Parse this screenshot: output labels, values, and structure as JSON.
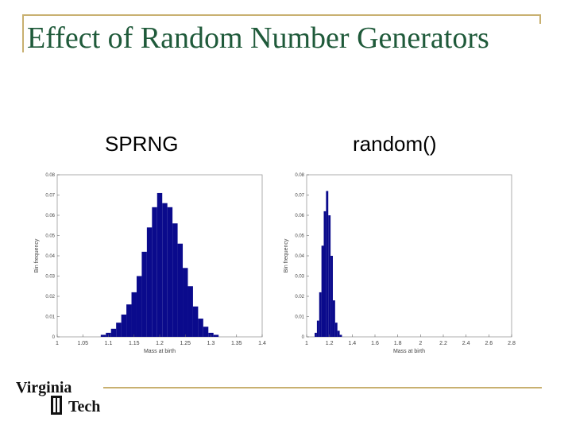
{
  "slide": {
    "title": "Effect of Random Number Generators",
    "colors": {
      "title": "#1f5a3a",
      "rule": "#c8b070",
      "bars": "#0a0a8c"
    }
  },
  "logo": {
    "line1": "Virginia",
    "line2": "Tech"
  },
  "chart_data": [
    {
      "type": "bar",
      "title": "SPRNG",
      "xlabel": "Mass at birth",
      "ylabel": "Bin frequency",
      "xlim": [
        1,
        1.4
      ],
      "ylim": [
        0,
        0.08
      ],
      "xticks": [
        "1",
        "1.05",
        "1.1",
        "1.15",
        "1.2",
        "1.25",
        "1.3",
        "1.35",
        "1.4"
      ],
      "yticks": [
        "0",
        "0.01",
        "0.02",
        "0.03",
        "0.04",
        "0.05",
        "0.06",
        "0.07",
        "0.08"
      ],
      "x": [
        1.09,
        1.1,
        1.11,
        1.12,
        1.13,
        1.14,
        1.15,
        1.16,
        1.17,
        1.18,
        1.19,
        1.2,
        1.21,
        1.22,
        1.23,
        1.24,
        1.25,
        1.26,
        1.27,
        1.28,
        1.29,
        1.3,
        1.31
      ],
      "values": [
        0.001,
        0.002,
        0.004,
        0.007,
        0.011,
        0.016,
        0.022,
        0.03,
        0.042,
        0.054,
        0.064,
        0.071,
        0.066,
        0.064,
        0.056,
        0.046,
        0.034,
        0.025,
        0.015,
        0.009,
        0.005,
        0.002,
        0.001
      ]
    },
    {
      "type": "bar",
      "title": "random()",
      "xlabel": "Mass at birth",
      "ylabel": "Bin frequency",
      "xlim": [
        1,
        2.8
      ],
      "ylim": [
        0,
        0.08
      ],
      "xticks": [
        "1",
        "1.2",
        "1.4",
        "1.6",
        "1.8",
        "2",
        "2.2",
        "2.4",
        "2.6",
        "2.8"
      ],
      "yticks": [
        "0",
        "0.01",
        "0.02",
        "0.03",
        "0.04",
        "0.05",
        "0.06",
        "0.07",
        "0.08"
      ],
      "x": [
        1.08,
        1.1,
        1.12,
        1.14,
        1.16,
        1.18,
        1.2,
        1.22,
        1.24,
        1.26,
        1.28,
        1.3
      ],
      "values": [
        0.002,
        0.008,
        0.022,
        0.045,
        0.062,
        0.072,
        0.06,
        0.04,
        0.018,
        0.007,
        0.003,
        0.001
      ]
    }
  ]
}
